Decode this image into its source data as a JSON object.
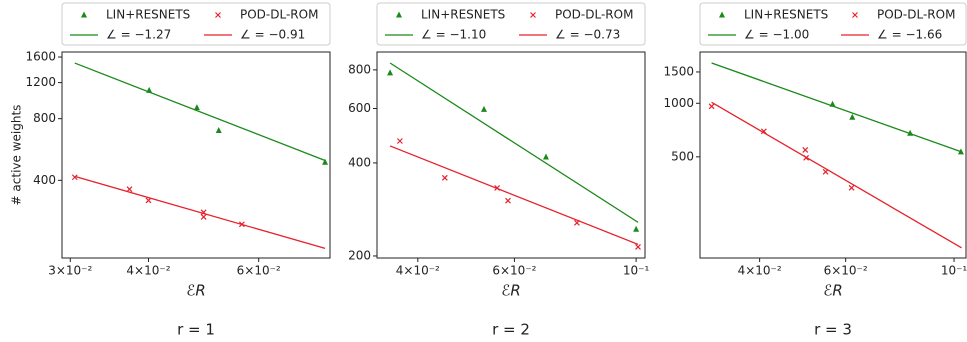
{
  "chart_data": [
    {
      "type": "scatter",
      "title": "r = 1",
      "xlabel": "ℰR",
      "ylabel": "# active weights",
      "xscale": "log",
      "yscale": "log",
      "xlim": [
        0.0291,
        0.078
      ],
      "ylim": [
        167,
        1693
      ],
      "xticks": [
        {
          "value": 0.03,
          "label": "3×10⁻²"
        },
        {
          "value": 0.04,
          "label": "4×10⁻²"
        },
        {
          "value": 0.06,
          "label": "6×10⁻²"
        }
      ],
      "yticks": [
        400,
        800,
        1200,
        1600
      ],
      "series": [
        {
          "name": "LIN+RESNETS",
          "color": "#1a8a1a",
          "marker": "triangle",
          "x": [
            0.0401,
            0.0478,
            0.0518,
            0.0766
          ],
          "values": [
            1100,
            906,
            700,
            490
          ]
        },
        {
          "name": "POD-DL-ROM",
          "color": "#e8202a",
          "marker": "x",
          "x": [
            0.0305,
            0.0373,
            0.04,
            0.049,
            0.049,
            0.0564
          ],
          "values": [
            414,
            362,
            319,
            279,
            265,
            244
          ]
        },
        {
          "name": "∠ = −1.27",
          "color": "#1a8a1a",
          "marker": "line",
          "x": [
            0.0305,
            0.0766
          ],
          "values": [
            1495,
            500
          ]
        },
        {
          "name": "∠ = −0.91",
          "color": "#e8202a",
          "marker": "line",
          "x": [
            0.0305,
            0.0766
          ],
          "values": [
            418,
            186
          ]
        }
      ]
    },
    {
      "type": "scatter",
      "title": "r = 2",
      "xlabel": "ℰR",
      "xscale": "log",
      "yscale": "log",
      "xlim": [
        0.0337,
        0.1038
      ],
      "ylim": [
        197,
        914
      ],
      "xticks": [
        {
          "value": 0.04,
          "label": "4×10⁻²"
        },
        {
          "value": 0.06,
          "label": "6×10⁻²"
        },
        {
          "value": 0.1,
          "label": "10⁻¹"
        }
      ],
      "yticks": [
        200,
        400,
        600,
        800
      ],
      "series": [
        {
          "name": "LIN+RESNETS",
          "color": "#1a8a1a",
          "marker": "triangle",
          "x": [
            0.0356,
            0.0528,
            0.0685,
            0.1
          ],
          "values": [
            782,
            596,
            418,
            244
          ]
        },
        {
          "name": "POD-DL-ROM",
          "color": "#e8202a",
          "marker": "x",
          "x": [
            0.0371,
            0.0448,
            0.0558,
            0.0584,
            0.078,
            0.1008
          ],
          "values": [
            471,
            358,
            332,
            302,
            256,
            214
          ]
        },
        {
          "name": "∠ = −1.10",
          "color": "#1a8a1a",
          "marker": "line",
          "x": [
            0.0356,
            0.1008
          ],
          "values": [
            842,
            257
          ]
        },
        {
          "name": "∠ = −0.73",
          "color": "#e8202a",
          "marker": "line",
          "x": [
            0.0356,
            0.1008
          ],
          "values": [
            454,
            218
          ]
        }
      ]
    },
    {
      "type": "scatter",
      "title": "r = 3",
      "xlabel": "ℰR",
      "xscale": "log",
      "yscale": "log",
      "xlim": [
        0.0302,
        0.1058
      ],
      "ylim": [
        135,
        1942
      ],
      "xticks": [
        {
          "value": 0.04,
          "label": "4×10⁻²"
        },
        {
          "value": 0.06,
          "label": "6×10⁻²"
        },
        {
          "value": 0.1,
          "label": "10⁻¹"
        }
      ],
      "yticks": [
        500,
        1000,
        1500
      ],
      "series": [
        {
          "name": "LIN+RESNETS",
          "color": "#1a8a1a",
          "marker": "triangle",
          "x": [
            0.0564,
            0.0619,
            0.0813,
            0.1033
          ],
          "values": [
            987,
            835,
            678,
            533
          ]
        },
        {
          "name": "POD-DL-ROM",
          "color": "#e8202a",
          "marker": "x",
          "x": [
            0.0319,
            0.0408,
            0.0496,
            0.0498,
            0.0546,
            0.0617
          ],
          "values": [
            962,
            696,
            547,
            494,
            412,
            335
          ]
        },
        {
          "name": "∠ = −1.00",
          "color": "#1a8a1a",
          "marker": "line",
          "x": [
            0.0319,
            0.1036
          ],
          "values": [
            1685,
            533
          ]
        },
        {
          "name": "∠ = −1.66",
          "color": "#e8202a",
          "marker": "line",
          "x": [
            0.0319,
            0.1036
          ],
          "values": [
            1013,
            154
          ]
        }
      ]
    }
  ]
}
